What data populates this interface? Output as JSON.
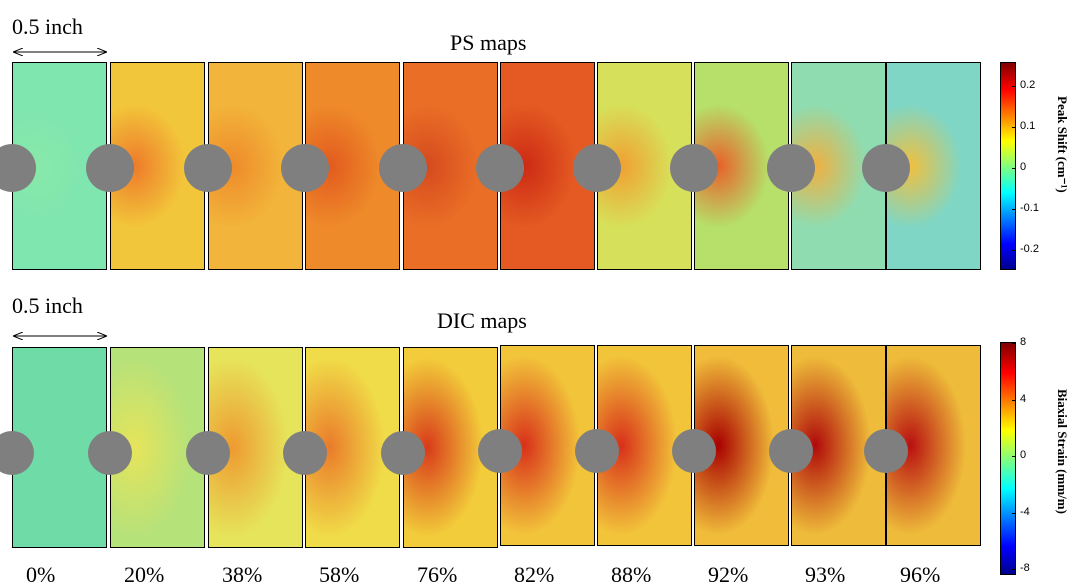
{
  "ps_maps": {
    "title": "PS maps",
    "scale_label": "0.5 inch",
    "colorbar": {
      "label": "Peak Shift (cm⁻¹)",
      "lim": [
        -0.25,
        0.26
      ],
      "ticks": [
        -0.2,
        -0.1,
        0,
        0.1,
        0.2
      ]
    }
  },
  "dic_maps": {
    "title": "DIC maps",
    "scale_label": "0.5 inch",
    "colorbar": {
      "label": "Biaxial Strain (mm/m)",
      "lim": [
        -8.4,
        8.1
      ],
      "ticks": [
        -8,
        -4,
        0,
        4,
        8
      ]
    }
  },
  "strain_levels": [
    "0%",
    "20%",
    "38%",
    "58%",
    "76%",
    "82%",
    "88%",
    "92%",
    "93%",
    "96%"
  ]
}
